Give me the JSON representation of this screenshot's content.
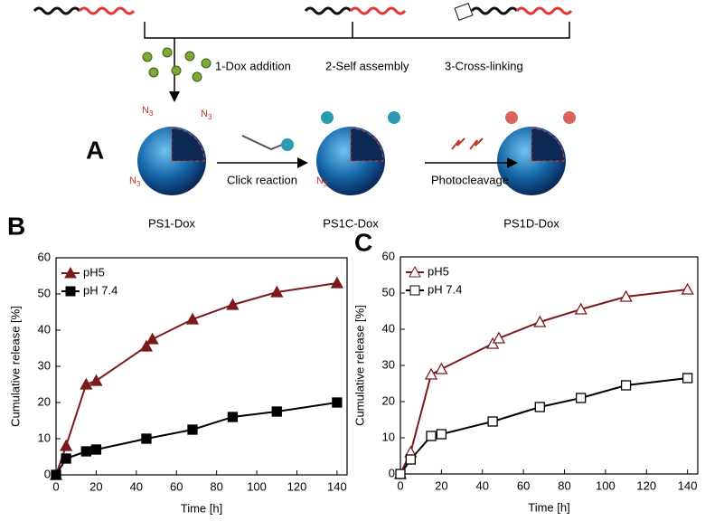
{
  "diagram": {
    "panel_label": "A",
    "steps": [
      "1-Dox addition",
      "2-Self assembly",
      "3-Cross-linking"
    ],
    "azide": {
      "symbol": "N",
      "subscript": "3"
    },
    "reactions": [
      "Click reaction",
      "Photocleavage"
    ],
    "products": [
      "PS1-Dox",
      "PS1C-Dox",
      "PS1D-Dox"
    ]
  },
  "chart_data": [
    {
      "type": "line",
      "panel_label": "B",
      "x_label": "Time [h]",
      "y_label": "Cumulative release [%]",
      "xlim": [
        0,
        145
      ],
      "ylim": [
        0,
        60
      ],
      "xticks": [
        0,
        20,
        40,
        60,
        80,
        100,
        120,
        140
      ],
      "yticks": [
        0,
        10,
        20,
        30,
        40,
        50,
        60
      ],
      "series": [
        {
          "name": "pH5",
          "color": "#7b1a1a",
          "marker": "triangle",
          "filled": true,
          "x": [
            0,
            5,
            15,
            20,
            45,
            48,
            68,
            88,
            110,
            140
          ],
          "values": [
            0,
            8,
            25,
            26,
            35.5,
            37.5,
            43,
            47,
            50.5,
            53
          ]
        },
        {
          "name": "pH 7.4",
          "color": "#000000",
          "marker": "square",
          "filled": true,
          "x": [
            0,
            5,
            15,
            20,
            45,
            68,
            88,
            110,
            140
          ],
          "values": [
            0,
            4.5,
            6.5,
            7,
            10,
            12.5,
            16,
            17.5,
            20
          ]
        }
      ]
    },
    {
      "type": "line",
      "panel_label": "C",
      "x_label": "Time [h]",
      "y_label": "Cumulative release [%]",
      "xlim": [
        0,
        145
      ],
      "ylim": [
        0,
        60
      ],
      "xticks": [
        0,
        20,
        40,
        60,
        80,
        100,
        120,
        140
      ],
      "yticks": [
        0,
        10,
        20,
        30,
        40,
        50,
        60
      ],
      "series": [
        {
          "name": "pH5",
          "color": "#7b1a1a",
          "marker": "triangle",
          "filled": false,
          "x": [
            0,
            5,
            15,
            20,
            45,
            48,
            68,
            88,
            110,
            140
          ],
          "values": [
            0,
            6,
            27.5,
            29,
            36,
            37.5,
            42,
            45.5,
            49,
            51
          ]
        },
        {
          "name": "pH 7.4",
          "color": "#000000",
          "marker": "square",
          "filled": false,
          "x": [
            0,
            5,
            15,
            20,
            45,
            68,
            88,
            110,
            140
          ],
          "values": [
            0,
            4,
            10.5,
            11,
            14.5,
            18.5,
            21,
            24.5,
            26.5
          ]
        }
      ]
    }
  ]
}
